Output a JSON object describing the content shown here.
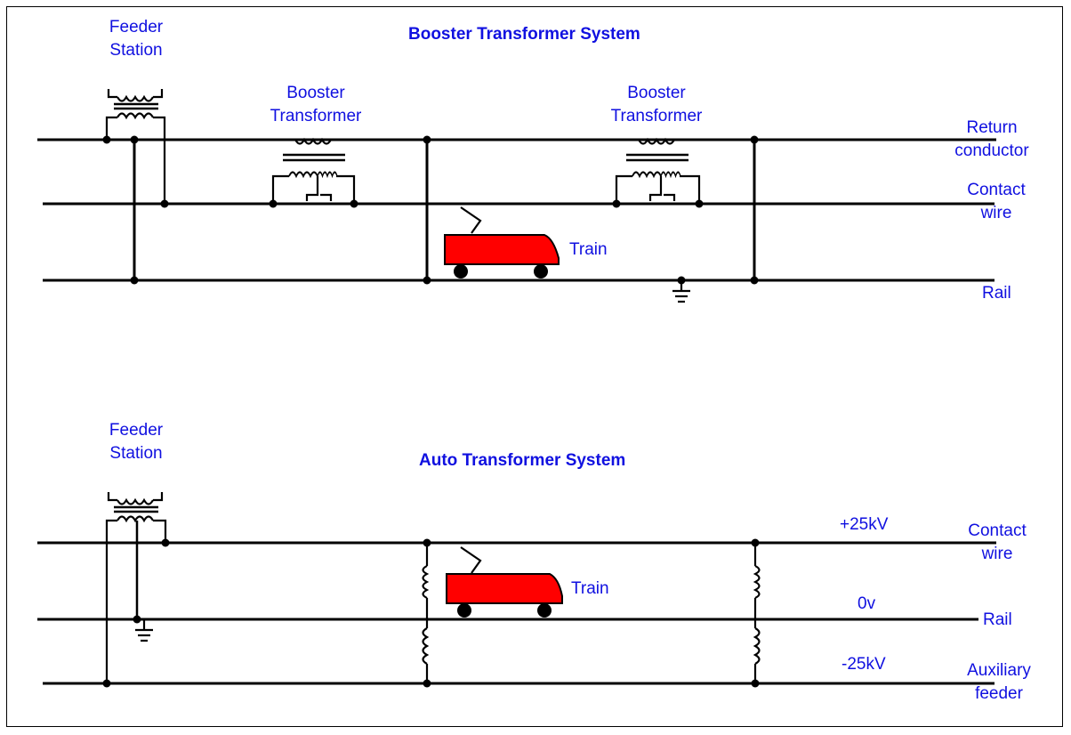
{
  "colors": {
    "label": "#1010e0",
    "train": "#ff0000",
    "wire": "#000000"
  },
  "top": {
    "title": "Booster Transformer System",
    "feeder_station": [
      "Feeder",
      "Station"
    ],
    "booster_1": [
      "Booster",
      "Transformer"
    ],
    "booster_2": [
      "Booster",
      "Transformer"
    ],
    "train": "Train",
    "lines": {
      "return_conductor": [
        "Return",
        "conductor"
      ],
      "contact_wire": [
        "Contact",
        "wire"
      ],
      "rail": "Rail"
    }
  },
  "bottom": {
    "title": "Auto Transformer System",
    "feeder_station": [
      "Feeder",
      "Station"
    ],
    "train": "Train",
    "voltages": {
      "plus": "+25kV",
      "zero": "0v",
      "minus": "-25kV"
    },
    "lines": {
      "contact_wire": [
        "Contact",
        "wire"
      ],
      "rail": "Rail",
      "auxiliary_feeder": [
        "Auxiliary",
        "feeder"
      ]
    }
  }
}
